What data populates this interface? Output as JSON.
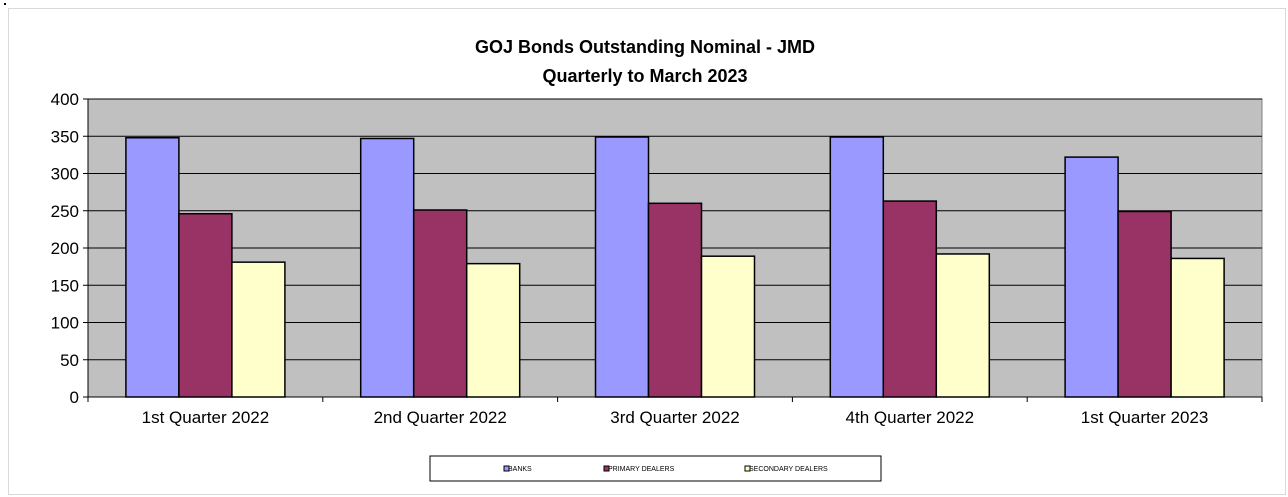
{
  "chart_data": {
    "type": "bar",
    "title": "GOJ Bonds Outstanding Nominal - JMD",
    "subtitle": "Quarterly to March 2023",
    "categories": [
      "1st Quarter 2022",
      "2nd Quarter 2022",
      "3rd Quarter 2022",
      "4th Quarter 2022",
      "1st Quarter 2023"
    ],
    "series": [
      {
        "name": "BANKS",
        "color": "#9999ff",
        "values": [
          348,
          347,
          349,
          349,
          322
        ]
      },
      {
        "name": "PRIMARY DEALERS",
        "color": "#993366",
        "values": [
          246,
          251,
          260,
          263,
          249
        ]
      },
      {
        "name": "SECONDARY DEALERS",
        "color": "#ffffcc",
        "values": [
          181,
          179,
          189,
          192,
          186
        ]
      }
    ],
    "ylim": [
      0,
      400
    ],
    "yticks": [
      0,
      50,
      100,
      150,
      200,
      250,
      300,
      350,
      400
    ],
    "grid": true,
    "plot_background": "#c0c0c0",
    "legend_position": "bottom"
  }
}
